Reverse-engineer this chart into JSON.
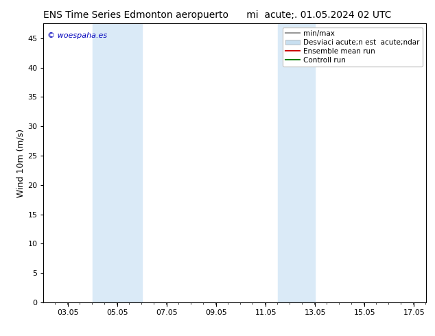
{
  "title": "ENS Time Series Edmonton aeropuerto",
  "title2": "mi  acute;. 01.05.2024 02 UTC",
  "ylabel": "Wind 10m (m/s)",
  "background_color": "#ffffff",
  "plot_bg_color": "#ffffff",
  "x_min": 2.05,
  "x_max": 17.55,
  "y_min": 0,
  "y_max": 47.5,
  "yticks": [
    0,
    5,
    10,
    15,
    20,
    25,
    30,
    35,
    40,
    45
  ],
  "xtick_labels": [
    "03.05",
    "05.05",
    "07.05",
    "09.05",
    "11.05",
    "13.05",
    "15.05",
    "17.05"
  ],
  "xtick_positions": [
    3.05,
    5.05,
    7.05,
    9.05,
    11.05,
    13.05,
    15.05,
    17.05
  ],
  "shaded_regions": [
    {
      "x_start": 4.05,
      "x_end": 6.05,
      "color": "#daeaf7"
    },
    {
      "x_start": 11.55,
      "x_end": 13.05,
      "color": "#daeaf7"
    }
  ],
  "legend_items": [
    {
      "label": "min/max",
      "color": "#999999",
      "lw": 1.5,
      "type": "line"
    },
    {
      "label": "Desviaci acute;n est  acute;ndar",
      "color": "#c8dff0",
      "lw": 8,
      "type": "patch"
    },
    {
      "label": "Ensemble mean run",
      "color": "#cc0000",
      "lw": 1.5,
      "type": "line"
    },
    {
      "label": "Controll run",
      "color": "#008000",
      "lw": 1.5,
      "type": "line"
    }
  ],
  "watermark_text": "© woespaha.es",
  "watermark_color": "#0000bb",
  "title_fontsize": 10,
  "tick_fontsize": 8,
  "ylabel_fontsize": 9,
  "legend_fontsize": 7.5
}
